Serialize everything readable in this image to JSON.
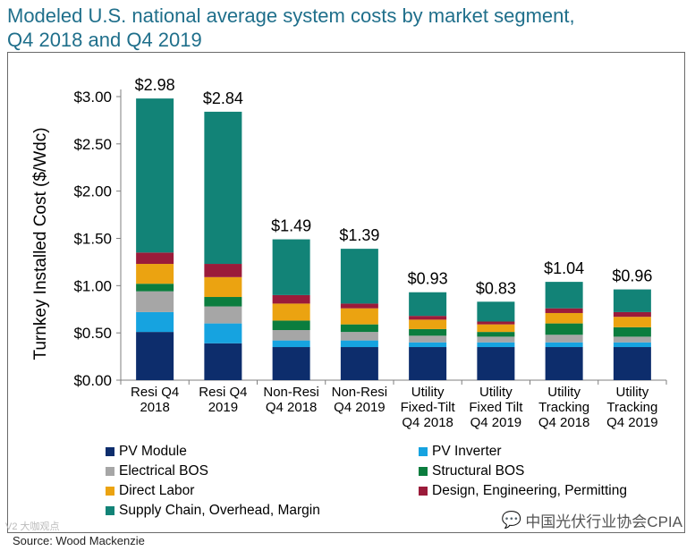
{
  "header": {
    "title_line1": "Modeled U.S. national average system costs by market segment,",
    "title_line2": "Q4 2018 and Q4 2019"
  },
  "chart_data": {
    "type": "bar",
    "stacked": true,
    "ylabel": "Turnkey Installed Cost ($/Wdc)",
    "ylim": [
      0,
      3.0
    ],
    "yticks": [
      "$0.00",
      "$0.50",
      "$1.00",
      "$1.50",
      "$2.00",
      "$2.50",
      "$3.00"
    ],
    "ytick_values": [
      0,
      0.5,
      1.0,
      1.5,
      2.0,
      2.5,
      3.0
    ],
    "categories": [
      [
        "Resi Q4",
        "2018"
      ],
      [
        "Resi Q4",
        "2019"
      ],
      [
        "Non-Resi",
        "Q4 2018"
      ],
      [
        "Non-Resi",
        "Q4 2019"
      ],
      [
        "Utility",
        "Fixed-Tilt",
        "Q4 2018"
      ],
      [
        "Utility",
        "Fixed Tilt",
        "Q4 2019"
      ],
      [
        "Utility",
        "Tracking",
        "Q4 2018"
      ],
      [
        "Utility",
        "Tracking",
        "Q4 2019"
      ]
    ],
    "totals": [
      "$2.98",
      "$2.84",
      "$1.49",
      "$1.39",
      "$0.93",
      "$0.83",
      "$1.04",
      "$0.96"
    ],
    "total_values": [
      2.98,
      2.84,
      1.49,
      1.39,
      0.93,
      0.83,
      1.04,
      0.96
    ],
    "series": [
      {
        "name": "PV Module",
        "color": "#0d2d6c",
        "values": [
          0.51,
          0.39,
          0.35,
          0.35,
          0.35,
          0.35,
          0.35,
          0.35
        ]
      },
      {
        "name": "PV Inverter",
        "color": "#16a3e0",
        "values": [
          0.21,
          0.21,
          0.07,
          0.07,
          0.05,
          0.05,
          0.05,
          0.05
        ]
      },
      {
        "name": "Electrical BOS",
        "color": "#a6a6a6",
        "values": [
          0.22,
          0.18,
          0.11,
          0.09,
          0.07,
          0.06,
          0.08,
          0.06
        ]
      },
      {
        "name": "Structural BOS",
        "color": "#0b7d3e",
        "values": [
          0.08,
          0.1,
          0.1,
          0.08,
          0.07,
          0.05,
          0.12,
          0.1
        ]
      },
      {
        "name": "Direct Labor",
        "color": "#eba311",
        "values": [
          0.21,
          0.21,
          0.18,
          0.17,
          0.1,
          0.08,
          0.11,
          0.11
        ]
      },
      {
        "name": "Design, Engineering, Permitting",
        "color": "#9b1b3a",
        "values": [
          0.12,
          0.14,
          0.09,
          0.05,
          0.04,
          0.03,
          0.05,
          0.05
        ]
      },
      {
        "name": "Supply Chain, Overhead, Margin",
        "color": "#128377",
        "values": [
          1.63,
          1.61,
          0.59,
          0.58,
          0.25,
          0.21,
          0.28,
          0.24
        ]
      }
    ],
    "grid": false,
    "legend_position": "bottom"
  },
  "legend": {
    "items": [
      {
        "label": "PV Module",
        "color": "#0d2d6c"
      },
      {
        "label": "PV Inverter",
        "color": "#16a3e0"
      },
      {
        "label": "Electrical BOS",
        "color": "#a6a6a6"
      },
      {
        "label": "Structural BOS",
        "color": "#0b7d3e"
      },
      {
        "label": "Direct Labor",
        "color": "#eba311"
      },
      {
        "label": "Design, Engineering, Permitting",
        "color": "#9b1b3a"
      },
      {
        "label": "Supply Chain, Overhead, Margin",
        "color": "#128377"
      }
    ]
  },
  "footer": {
    "source": "Source: Wood Mackenzie",
    "watermark": "中国光伏行业协会CPIA",
    "watermark_icon": "wechat-icon",
    "watermark_left": "V2 大咖观点"
  }
}
